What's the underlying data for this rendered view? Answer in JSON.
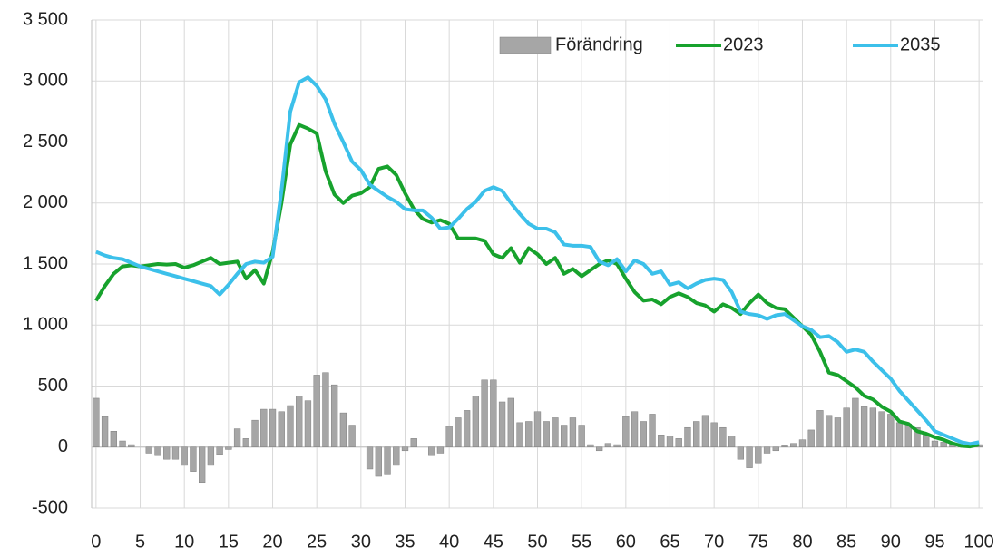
{
  "chart_data": {
    "type": "bar",
    "x": [
      0,
      1,
      2,
      3,
      4,
      5,
      6,
      7,
      8,
      9,
      10,
      11,
      12,
      13,
      14,
      15,
      16,
      17,
      18,
      19,
      20,
      21,
      22,
      23,
      24,
      25,
      26,
      27,
      28,
      29,
      30,
      31,
      32,
      33,
      34,
      35,
      36,
      37,
      38,
      39,
      40,
      41,
      42,
      43,
      44,
      45,
      46,
      47,
      48,
      49,
      50,
      51,
      52,
      53,
      54,
      55,
      56,
      57,
      58,
      59,
      60,
      61,
      62,
      63,
      64,
      65,
      66,
      67,
      68,
      69,
      70,
      71,
      72,
      73,
      74,
      75,
      76,
      77,
      78,
      79,
      80,
      81,
      82,
      83,
      84,
      85,
      86,
      87,
      88,
      89,
      90,
      91,
      92,
      93,
      94,
      95,
      96,
      97,
      98,
      99,
      100
    ],
    "series": [
      {
        "name": "Förändring",
        "type": "bar",
        "color": "#a6a6a6",
        "values": [
          400,
          250,
          130,
          50,
          20,
          0,
          -50,
          -70,
          -100,
          -100,
          -150,
          -200,
          -290,
          -150,
          -60,
          -20,
          150,
          70,
          220,
          310,
          310,
          290,
          340,
          420,
          380,
          590,
          610,
          510,
          280,
          180,
          0,
          -180,
          -240,
          -220,
          -150,
          -30,
          70,
          0,
          -70,
          -50,
          170,
          240,
          300,
          420,
          550,
          550,
          370,
          400,
          200,
          210,
          290,
          210,
          240,
          180,
          240,
          180,
          20,
          -30,
          30,
          20,
          250,
          290,
          210,
          270,
          100,
          90,
          70,
          160,
          210,
          260,
          200,
          160,
          90,
          -100,
          -170,
          -130,
          -50,
          -30,
          10,
          30,
          60,
          140,
          300,
          260,
          240,
          320,
          400,
          330,
          320,
          290,
          270,
          200,
          190,
          160,
          110,
          50,
          40,
          30,
          20,
          10,
          20
        ]
      },
      {
        "name": "2023",
        "type": "line",
        "color": "#17a22d",
        "values": [
          1200,
          1320,
          1420,
          1480,
          1490,
          1480,
          1490,
          1500,
          1495,
          1500,
          1470,
          1490,
          1520,
          1550,
          1500,
          1510,
          1520,
          1380,
          1450,
          1340,
          1600,
          2000,
          2480,
          2640,
          2610,
          2570,
          2260,
          2070,
          2000,
          2060,
          2080,
          2130,
          2280,
          2300,
          2230,
          2080,
          1950,
          1870,
          1840,
          1860,
          1830,
          1710,
          1710,
          1710,
          1690,
          1580,
          1550,
          1630,
          1510,
          1630,
          1580,
          1500,
          1550,
          1420,
          1460,
          1400,
          1450,
          1500,
          1530,
          1500,
          1380,
          1270,
          1200,
          1210,
          1170,
          1230,
          1260,
          1230,
          1180,
          1160,
          1110,
          1170,
          1140,
          1090,
          1180,
          1250,
          1180,
          1140,
          1130,
          1060,
          990,
          920,
          780,
          610,
          590,
          540,
          490,
          420,
          390,
          330,
          290,
          210,
          190,
          130,
          110,
          80,
          60,
          30,
          10,
          5,
          20
        ]
      },
      {
        "name": "2035",
        "type": "line",
        "color": "#3cc0ea",
        "values": [
          1600,
          1570,
          1550,
          1540,
          1510,
          1480,
          1460,
          1440,
          1420,
          1400,
          1380,
          1360,
          1340,
          1320,
          1250,
          1330,
          1420,
          1500,
          1520,
          1510,
          1560,
          2100,
          2750,
          2990,
          3030,
          2960,
          2850,
          2650,
          2500,
          2340,
          2270,
          2150,
          2100,
          2050,
          2010,
          1950,
          1940,
          1940,
          1880,
          1790,
          1800,
          1870,
          1950,
          2010,
          2100,
          2130,
          2100,
          2000,
          1910,
          1830,
          1790,
          1790,
          1760,
          1660,
          1650,
          1650,
          1640,
          1520,
          1490,
          1540,
          1440,
          1530,
          1500,
          1420,
          1440,
          1330,
          1350,
          1300,
          1340,
          1370,
          1380,
          1370,
          1270,
          1110,
          1090,
          1080,
          1050,
          1080,
          1090,
          1040,
          990,
          960,
          900,
          910,
          860,
          780,
          800,
          780,
          700,
          630,
          560,
          460,
          380,
          300,
          220,
          130,
          100,
          70,
          40,
          25,
          40
        ]
      }
    ],
    "xlim": [
      -0.5,
      100.5
    ],
    "xticks": [
      0,
      5,
      10,
      15,
      20,
      25,
      30,
      35,
      40,
      45,
      50,
      55,
      60,
      65,
      70,
      75,
      80,
      85,
      90,
      95,
      100
    ],
    "ylim": [
      -500,
      3500
    ],
    "yticks": [
      -500,
      0,
      500,
      {
        "value": 1000,
        "label": "1 000"
      },
      {
        "value": 1500,
        "label": "1 500"
      },
      {
        "value": 2000,
        "label": "2 000"
      },
      {
        "value": 2500,
        "label": "2 500"
      },
      {
        "value": 3000,
        "label": "3 000"
      },
      {
        "value": 3500,
        "label": "3 500"
      }
    ],
    "grid": true,
    "legend": "top-right"
  }
}
